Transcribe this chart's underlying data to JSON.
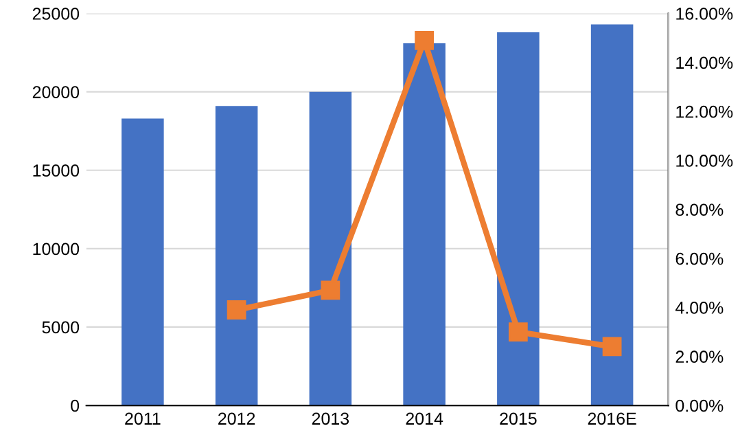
{
  "chart_data": {
    "type": "bar",
    "categories": [
      "2011",
      "2012",
      "2013",
      "2014",
      "2015",
      "2016E"
    ],
    "series": [
      {
        "color": "#4472c4",
        "values": [
          18300,
          19100,
          20000,
          23100,
          23800,
          24300
        ]
      },
      {
        "type": "line",
        "axis": "y2",
        "color": "#ed7d31",
        "marker": "square",
        "line_style": "solid",
        "values": [
          null,
          3.9,
          4.7,
          14.9,
          3.0,
          2.4
        ]
      }
    ],
    "ylim": [
      0,
      25000
    ],
    "yticks": [
      0,
      5000,
      10000,
      15000,
      20000,
      25000
    ],
    "y2lim": [
      0,
      16
    ],
    "y2ticks": [
      {
        "value": 0,
        "label": "0.00%"
      },
      {
        "value": 2,
        "label": "2.00%"
      },
      {
        "value": 4,
        "label": "4.00%"
      },
      {
        "value": 6,
        "label": "6.00%"
      },
      {
        "value": 8,
        "label": "8.00%"
      },
      {
        "value": 10,
        "label": "10.00%"
      },
      {
        "value": 12,
        "label": "12.00%"
      },
      {
        "value": 14,
        "label": "14.00%"
      },
      {
        "value": 16,
        "label": "16.00%"
      }
    ],
    "grid": "y",
    "legend": false
  }
}
